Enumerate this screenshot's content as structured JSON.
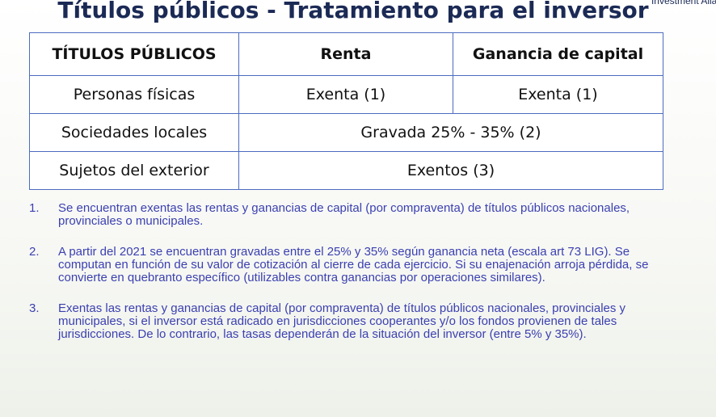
{
  "header": {
    "title": "Títulos públicos - Tratamiento para el inversor",
    "corner": "Investment Allai"
  },
  "table": {
    "columns": [
      "TÍTULOS PÚBLICOS",
      "Renta",
      "Ganancia de capital"
    ],
    "rows": [
      [
        "Personas físicas",
        "Exenta (1)",
        "Exenta (1)"
      ],
      [
        "Sociedades locales",
        "Gravada 25% - 35% (2)"
      ],
      [
        "Sujetos del exterior",
        "Exentos (3)"
      ]
    ]
  },
  "notes": [
    {
      "number": "1.",
      "text": "Se encuentran exentas las rentas y ganancias de capital (por compraventa) de títulos públicos nacionales, provinciales o municipales."
    },
    {
      "number": "2.",
      "text": "A partir del 2021 se encuentran gravadas entre el 25% y 35% según ganancia neta (escala art 73 LIG). Se computan en función de su valor de cotización al cierre de cada ejercicio. Si su enajenación arroja pérdida, se convierte en quebranto específico (utilizables contra ganancias por operaciones similares)."
    },
    {
      "number": "3.",
      "text": "Exentas las rentas y ganancias de capital (por compraventa) de títulos públicos nacionales, provinciales y municipales, si el inversor está radicado en jurisdicciones cooperantes y/o los fondos provienen de tales jurisdicciones. De lo contrario, las tasas dependerán de la situación del inversor (entre 5% y 35%)."
    }
  ]
}
